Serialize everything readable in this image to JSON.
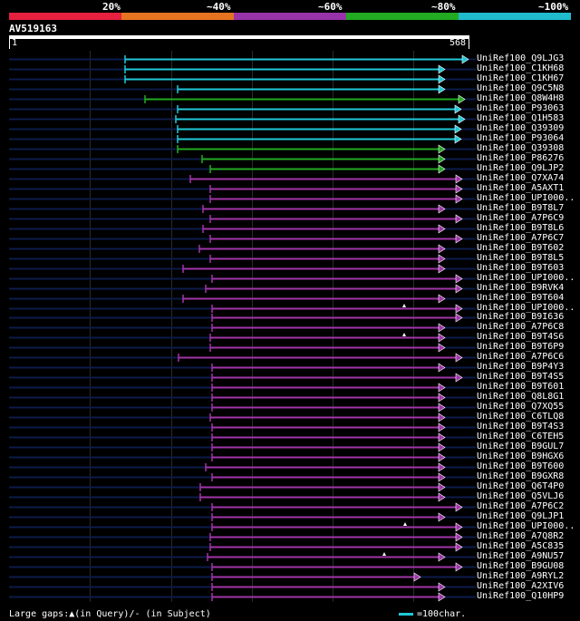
{
  "legend": {
    "segments": [
      {
        "color": "#e6203f"
      },
      {
        "color": "#e67320"
      },
      {
        "color": "#9933aa"
      },
      {
        "color": "#22aa22"
      },
      {
        "color": "#20bbcc"
      }
    ],
    "labels": [
      "20%",
      "~40%",
      "~60%",
      "~80%",
      "~100%"
    ]
  },
  "query": {
    "name": "AV519163",
    "start": "1",
    "end": "568",
    "length": 568
  },
  "colors": {
    "cyan": "#20c8d8",
    "green": "#22aa22",
    "purple": "#a035a8",
    "background_line": "#0d1b4a"
  },
  "hits": [
    {
      "label": "UniRef100_Q9LJG3",
      "color": "cyan"
    },
    {
      "label": "UniRef100_C1KH68",
      "color": "cyan"
    },
    {
      "label": "UniRef100_C1KH67",
      "color": "cyan"
    },
    {
      "label": "UniRef100_Q9C5N8",
      "color": "cyan"
    },
    {
      "label": "UniRef100_Q8W4H8",
      "color": "green"
    },
    {
      "label": "UniRef100_P93063",
      "color": "cyan"
    },
    {
      "label": "UniRef100_Q1H583",
      "color": "cyan"
    },
    {
      "label": "UniRef100_Q39309",
      "color": "cyan"
    },
    {
      "label": "UniRef100_P93064",
      "color": "cyan"
    },
    {
      "label": "UniRef100_Q39308",
      "color": "green"
    },
    {
      "label": "UniRef100_P86276",
      "color": "green"
    },
    {
      "label": "UniRef100_Q9LJP2",
      "color": "green"
    },
    {
      "label": "UniRef100_Q7XA74",
      "color": "purple"
    },
    {
      "label": "UniRef100_A5AXT1",
      "color": "purple"
    },
    {
      "label": "UniRef100_UPI000..",
      "color": "purple"
    },
    {
      "label": "UniRef100_B9T8L7",
      "color": "purple"
    },
    {
      "label": "UniRef100_A7P6C9",
      "color": "purple"
    },
    {
      "label": "UniRef100_B9T8L6",
      "color": "purple"
    },
    {
      "label": "UniRef100_A7P6C7",
      "color": "purple"
    },
    {
      "label": "UniRef100_B9T602",
      "color": "purple"
    },
    {
      "label": "UniRef100_B9T8L5",
      "color": "purple"
    },
    {
      "label": "UniRef100_B9T603",
      "color": "purple"
    },
    {
      "label": "UniRef100_UPI000..",
      "color": "purple"
    },
    {
      "label": "UniRef100_B9RVK4",
      "color": "purple"
    },
    {
      "label": "UniRef100_B9T604",
      "color": "purple"
    },
    {
      "label": "UniRef100_UPI000..",
      "color": "purple"
    },
    {
      "label": "UniRef100_B9I636",
      "color": "purple"
    },
    {
      "label": "UniRef100_A7P6C8",
      "color": "purple"
    },
    {
      "label": "UniRef100_B9T4S6",
      "color": "purple"
    },
    {
      "label": "UniRef100_B9T6P9",
      "color": "purple"
    },
    {
      "label": "UniRef100_A7P6C6",
      "color": "purple"
    },
    {
      "label": "UniRef100_B9P4Y3",
      "color": "purple"
    },
    {
      "label": "UniRef100_B9T4S5",
      "color": "purple"
    },
    {
      "label": "UniRef100_B9T601",
      "color": "purple"
    },
    {
      "label": "UniRef100_Q8L8G1",
      "color": "purple"
    },
    {
      "label": "UniRef100_Q7XQ55",
      "color": "purple"
    },
    {
      "label": "UniRef100_C6TLQ8",
      "color": "purple"
    },
    {
      "label": "UniRef100_B9T4S3",
      "color": "purple"
    },
    {
      "label": "UniRef100_C6TEH5",
      "color": "purple"
    },
    {
      "label": "UniRef100_B9GUL7",
      "color": "purple"
    },
    {
      "label": "UniRef100_B9HGX6",
      "color": "purple"
    },
    {
      "label": "UniRef100_B9T600",
      "color": "purple"
    },
    {
      "label": "UniRef100_B9GXR8",
      "color": "purple"
    },
    {
      "label": "UniRef100_Q6T4P0",
      "color": "purple"
    },
    {
      "label": "UniRef100_Q5VLJ6",
      "color": "purple"
    },
    {
      "label": "UniRef100_A7P6C2",
      "color": "purple"
    },
    {
      "label": "UniRef100_Q9LJP1",
      "color": "purple"
    },
    {
      "label": "UniRef100_UPI000..",
      "color": "purple"
    },
    {
      "label": "UniRef100_A7Q8R2",
      "color": "purple"
    },
    {
      "label": "UniRef100_A5C835",
      "color": "purple"
    },
    {
      "label": "UniRef100_A9NU57",
      "color": "purple"
    },
    {
      "label": "UniRef100_B9GU08",
      "color": "purple"
    },
    {
      "label": "UniRef100_A9RYL2",
      "color": "purple"
    },
    {
      "label": "UniRef100_A2XIV6",
      "color": "purple"
    },
    {
      "label": "UniRef100_Q10HP9",
      "color": "purple"
    }
  ],
  "footer": {
    "gaps_text": "Large gaps:▲(in Query)/- (in Subject)",
    "scale_text": "=100char."
  }
}
